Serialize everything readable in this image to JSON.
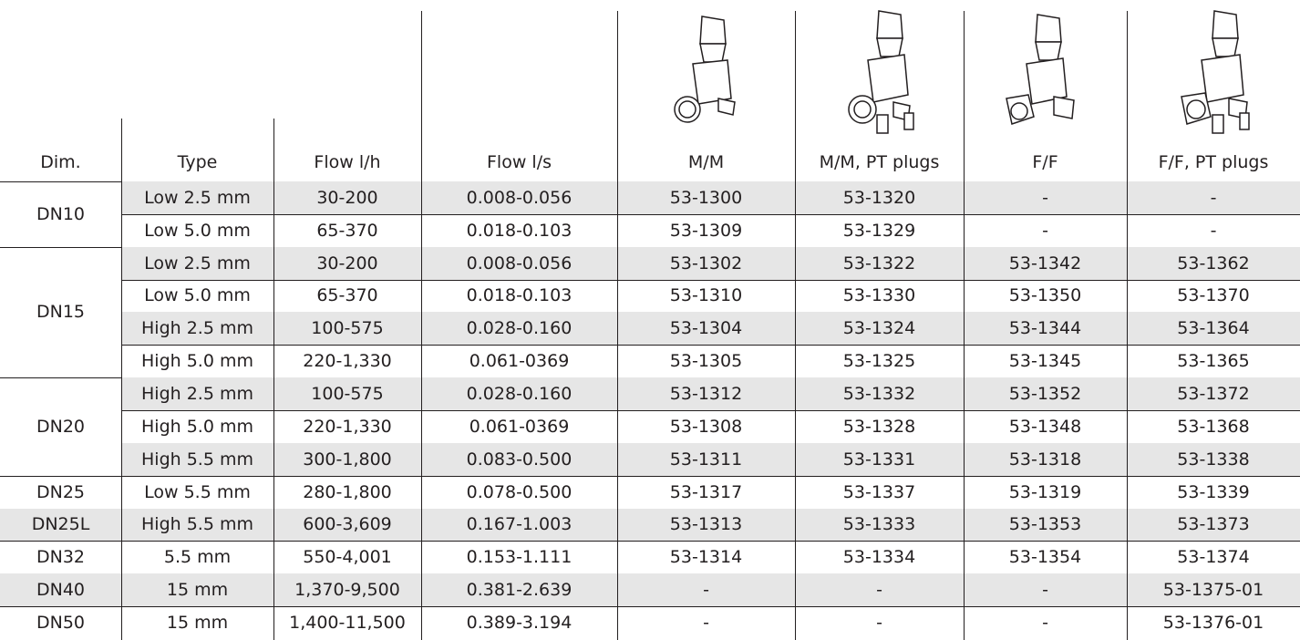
{
  "table": {
    "columns": [
      "Dim.",
      "Type",
      "Flow l/h",
      "Flow l/s",
      "M/M",
      "M/M, PT plugs",
      "F/F",
      "F/F, PT plugs"
    ],
    "groups": [
      {
        "dim": "DN10",
        "rows": [
          [
            "Low 2.5 mm",
            "30-200",
            "0.008-0.056",
            "53-1300",
            "53-1320",
            "-",
            "-"
          ],
          [
            "Low 5.0 mm",
            "65-370",
            "0.018-0.103",
            "53-1309",
            "53-1329",
            "-",
            "-"
          ]
        ]
      },
      {
        "dim": "DN15",
        "rows": [
          [
            "Low 2.5 mm",
            "30-200",
            "0.008-0.056",
            "53-1302",
            "53-1322",
            "53-1342",
            "53-1362"
          ],
          [
            "Low 5.0 mm",
            "65-370",
            "0.018-0.103",
            "53-1310",
            "53-1330",
            "53-1350",
            "53-1370"
          ],
          [
            "High 2.5 mm",
            "100-575",
            "0.028-0.160",
            "53-1304",
            "53-1324",
            "53-1344",
            "53-1364"
          ],
          [
            "High 5.0 mm",
            "220-1,330",
            "0.061-0369",
            "53-1305",
            "53-1325",
            "53-1345",
            "53-1365"
          ]
        ]
      },
      {
        "dim": "DN20",
        "rows": [
          [
            "High 2.5 mm",
            "100-575",
            "0.028-0.160",
            "53-1312",
            "53-1332",
            "53-1352",
            "53-1372"
          ],
          [
            "High 5.0 mm",
            "220-1,330",
            "0.061-0369",
            "53-1308",
            "53-1328",
            "53-1348",
            "53-1368"
          ],
          [
            "High 5.5 mm",
            "300-1,800",
            "0.083-0.500",
            "53-1311",
            "53-1331",
            "53-1318",
            "53-1338"
          ]
        ]
      },
      {
        "dim": "DN25",
        "rows": [
          [
            "Low 5.5 mm",
            "280-1,800",
            "0.078-0.500",
            "53-1317",
            "53-1337",
            "53-1319",
            "53-1339"
          ]
        ]
      },
      {
        "dim": "DN25L",
        "rows": [
          [
            "High 5.5 mm",
            "600-3,609",
            "0.167-1.003",
            "53-1313",
            "53-1333",
            "53-1353",
            "53-1373"
          ]
        ]
      },
      {
        "dim": "DN32",
        "rows": [
          [
            "5.5 mm",
            "550-4,001",
            "0.153-1.111",
            "53-1314",
            "53-1334",
            "53-1354",
            "53-1374"
          ]
        ]
      },
      {
        "dim": "DN40",
        "rows": [
          [
            "15 mm",
            "1,370-9,500",
            "0.381-2.639",
            "-",
            "-",
            "-",
            "53-1375-01"
          ]
        ]
      },
      {
        "dim": "DN50",
        "rows": [
          [
            "15 mm",
            "1,400-11,500",
            "0.389-3.194",
            "-",
            "-",
            "-",
            "53-1376-01"
          ]
        ]
      }
    ]
  }
}
